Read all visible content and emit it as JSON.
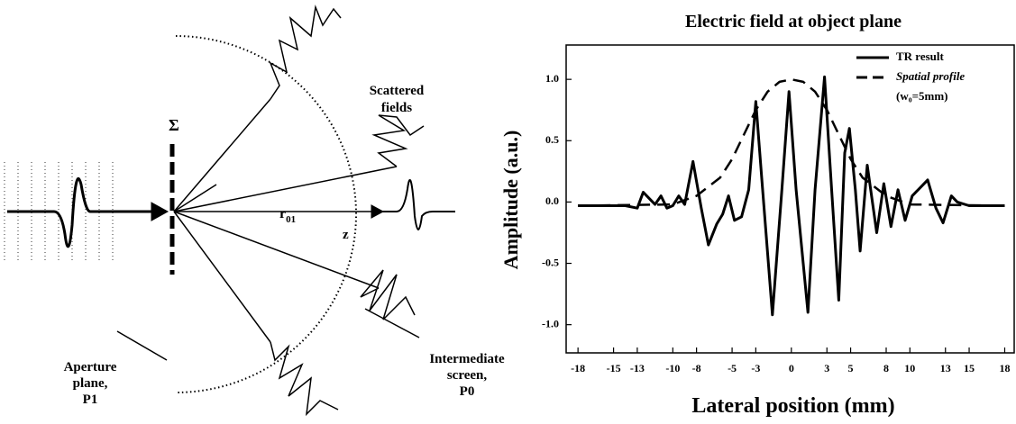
{
  "diagram": {
    "sigma": "Σ",
    "r": "r",
    "r_sub": "01",
    "z": "z",
    "scattered": [
      "Scattered",
      "fields"
    ],
    "aperture": [
      "Aperture",
      "plane,",
      "P1"
    ],
    "screen": [
      "Intermediate",
      "screen,",
      "P0"
    ]
  },
  "chart_data": {
    "type": "line",
    "title": "Electric field at object plane",
    "xlabel": "Lateral position (mm)",
    "ylabel": "Amplitude (a.u.)",
    "xlim": [
      -19,
      18.8
    ],
    "ylim": [
      -1.23,
      1.28
    ],
    "xticks": [
      -18,
      -15,
      -13,
      -10,
      -8,
      -5,
      -3,
      0,
      3,
      5,
      8,
      10,
      13,
      15,
      18
    ],
    "yticks": [
      {
        "value": -1,
        "label": "-1.0"
      },
      {
        "value": -0.5,
        "label": "-0.5"
      },
      {
        "value": 0,
        "label": "0.0"
      },
      {
        "value": 0.5,
        "label": "0.5"
      },
      {
        "value": 1,
        "label": "1.0"
      }
    ],
    "legend_position": "upper right",
    "grid": false,
    "legend_note": "(w₀=5mm)",
    "series": [
      {
        "name": "TR result",
        "color": "#000000",
        "style": "solid",
        "x": [
          -18,
          -14,
          -13,
          -12.5,
          -12,
          -11.5,
          -11,
          -10.5,
          -10,
          -9.5,
          -9,
          -8.3,
          -7.6,
          -7,
          -6.3,
          -5.8,
          -5.3,
          -4.8,
          -4.2,
          -3.6,
          -3,
          -2.5,
          -1.6,
          -0.8,
          -0.2,
          0.4,
          1.4,
          2,
          2.8,
          3.4,
          4,
          4.5,
          4.9,
          5.4,
          5.8,
          6.4,
          7.2,
          7.8,
          8.4,
          9,
          9.6,
          10.2,
          11.5,
          12.2,
          12.8,
          13.5,
          14,
          15,
          18
        ],
        "values": [
          -0.03,
          -0.03,
          -0.05,
          0.08,
          0.03,
          -0.02,
          0.05,
          -0.05,
          -0.03,
          0.05,
          -0.02,
          0.33,
          -0.05,
          -0.35,
          -0.18,
          -0.1,
          0.05,
          -0.15,
          -0.12,
          0.1,
          0.82,
          0.2,
          -0.92,
          0.1,
          0.9,
          0.1,
          -0.9,
          0.1,
          1.02,
          0.1,
          -0.8,
          0.4,
          0.6,
          0.1,
          -0.4,
          0.3,
          -0.25,
          0.15,
          -0.2,
          0.1,
          -0.15,
          0.05,
          0.18,
          -0.05,
          -0.17,
          0.05,
          0,
          -0.03,
          -0.03
        ]
      },
      {
        "name": "Spatial profile",
        "color": "#000000",
        "style": "dashed",
        "x": [
          -18,
          -10,
          -8,
          -6,
          -5,
          -4,
          -3,
          -2,
          -1,
          0,
          1,
          2,
          3,
          4,
          5,
          6,
          8,
          10,
          18
        ],
        "values": [
          -0.03,
          -0.02,
          0.05,
          0.2,
          0.35,
          0.55,
          0.75,
          0.9,
          0.98,
          1.0,
          0.98,
          0.9,
          0.75,
          0.55,
          0.35,
          0.2,
          0.05,
          -0.02,
          -0.03
        ]
      }
    ]
  }
}
